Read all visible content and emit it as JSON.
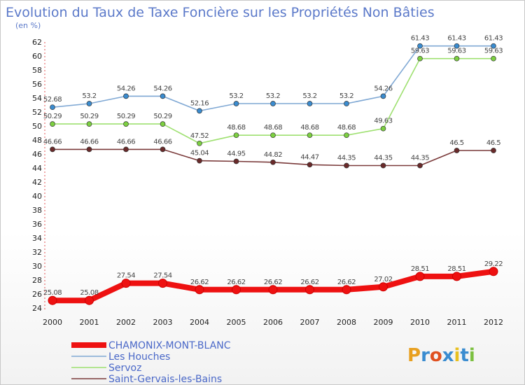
{
  "chart_data": {
    "type": "line",
    "title": "Evolution du Taux de Taxe Foncière sur les Propriétés Non Bâties",
    "subtitle": "(en %)",
    "categories": [
      "2000",
      "2001",
      "2002",
      "2003",
      "2004",
      "2005",
      "2006",
      "2007",
      "2008",
      "2009",
      "2010",
      "2011",
      "2012"
    ],
    "ylim": [
      24,
      62
    ],
    "yticks": [
      24,
      26,
      28,
      30,
      32,
      34,
      36,
      38,
      40,
      42,
      44,
      46,
      48,
      50,
      52,
      54,
      56,
      58,
      60,
      62
    ],
    "grid": false,
    "series": [
      {
        "name": "CHAMONIX-MONT-BLANC",
        "color": "#ee1111",
        "values": [
          25.08,
          25.08,
          27.54,
          27.54,
          26.62,
          26.62,
          26.62,
          26.62,
          26.62,
          27.02,
          28.51,
          28.51,
          29.22
        ],
        "labels": [
          "25.08",
          "25.08",
          "27.54",
          "27.54",
          "26.62",
          "26.62",
          "26.62",
          "26.62",
          "26.62",
          "27.02",
          "28.51",
          "28.51",
          "29.22"
        ]
      },
      {
        "name": "Les Houches",
        "color": "#7fa8d4",
        "marker": "#3a8cd0",
        "values": [
          52.68,
          53.2,
          54.26,
          54.26,
          52.16,
          53.2,
          53.2,
          53.2,
          53.2,
          54.26,
          61.43,
          61.43,
          61.43
        ],
        "labels": [
          "52.68",
          "53.2",
          "54.26",
          "54.26",
          "52.16",
          "53.2",
          "53.2",
          "53.2",
          "53.2",
          "54.26",
          "61.43",
          "61.43",
          "61.43"
        ]
      },
      {
        "name": "Servoz",
        "color": "#9ee070",
        "marker": "#7cd040",
        "values": [
          50.29,
          50.29,
          50.29,
          50.29,
          47.52,
          48.68,
          48.68,
          48.68,
          48.68,
          49.63,
          59.63,
          59.63,
          59.63
        ],
        "labels": [
          "50.29",
          "50.29",
          "50.29",
          "50.29",
          "47.52",
          "48.68",
          "48.68",
          "48.68",
          "48.68",
          "49.63",
          "59.63",
          "59.63",
          "59.63"
        ]
      },
      {
        "name": "Saint-Gervais-les-Bains",
        "color": "#7a3a3a",
        "marker": "#6a2a2a",
        "values": [
          46.66,
          46.66,
          46.66,
          46.66,
          45.04,
          44.95,
          44.82,
          44.47,
          44.35,
          44.35,
          44.35,
          46.5,
          46.5
        ],
        "labels": [
          "46.66",
          "46.66",
          "46.66",
          "46.66",
          "45.04",
          "44.95",
          "44.82",
          "44.47",
          "44.35",
          "44.35",
          "44.35",
          "46.5",
          "46.5"
        ]
      }
    ],
    "legend": [
      "CHAMONIX-MONT-BLANC",
      "Les Houches",
      "Servoz",
      "Saint-Gervais-les-Bains"
    ],
    "legend_position": "bottom-left"
  },
  "logo": {
    "text": "Proxiti",
    "colors": [
      "#e8a020",
      "#3a8cd0",
      "#e05020",
      "#3a8cd0",
      "#e8c020",
      "#3a8cd0",
      "#7cc040"
    ]
  }
}
